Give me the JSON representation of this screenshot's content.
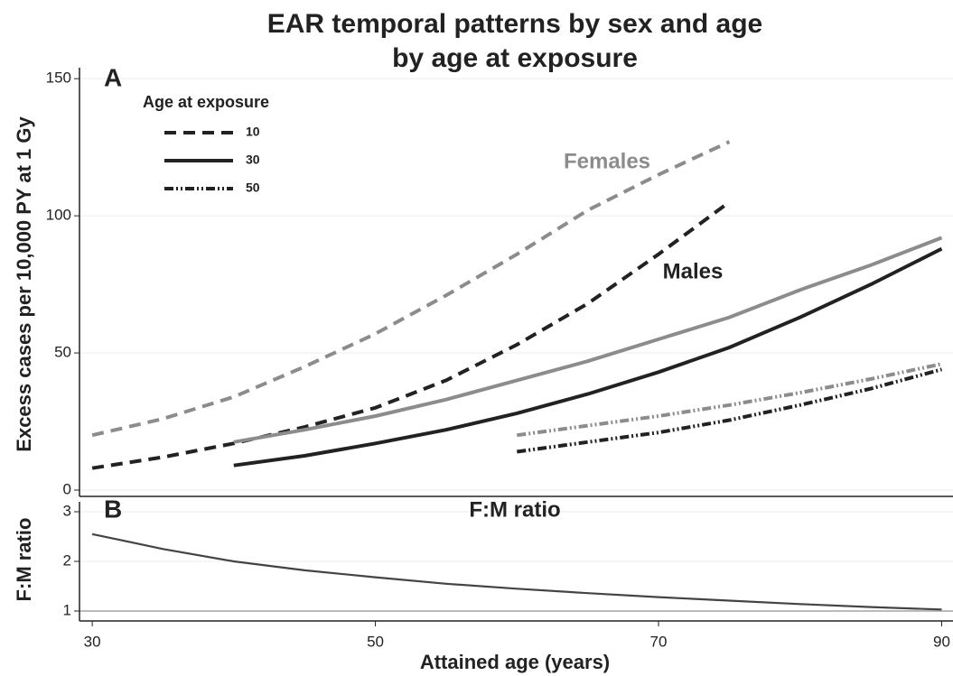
{
  "chart_data": [
    {
      "type": "line",
      "title": [
        "EAR temporal patterns by sex and age",
        "by age at exposure"
      ],
      "ylabel": "Excess cases per 10,000 PY at 1 Gy",
      "annotations": [
        "A",
        "Females",
        "Males"
      ],
      "xlim": [
        29.1,
        90.8
      ],
      "ylim": [
        -2.3,
        154
      ],
      "yticks": [
        0,
        50,
        100,
        150
      ],
      "grid": true,
      "legend": {
        "title": "Age at exposure",
        "color": "#222",
        "entries": [
          {
            "name": "10",
            "dash": "dashed"
          },
          {
            "name": "30",
            "dash": "solid"
          },
          {
            "name": "50",
            "dash": "dashdot"
          }
        ]
      },
      "series": [
        {
          "color": "#8c8c8c",
          "dash": "dashed",
          "x": [
            30,
            35,
            40,
            45,
            50,
            55,
            60,
            65,
            70,
            75
          ],
          "values": [
            20,
            26,
            34,
            45,
            57,
            71,
            86,
            102,
            115,
            127
          ]
        },
        {
          "color": "#222222",
          "dash": "dashed",
          "x": [
            30,
            35,
            40,
            45,
            50,
            55,
            60,
            65,
            70,
            75
          ],
          "values": [
            8,
            12,
            17,
            23,
            30,
            40,
            53,
            68,
            86,
            105
          ]
        },
        {
          "color": "#8c8c8c",
          "dash": "solid",
          "x": [
            40,
            45,
            50,
            55,
            60,
            65,
            70,
            75,
            80,
            85,
            90
          ],
          "values": [
            17.5,
            22,
            27,
            33,
            40,
            47,
            55,
            63,
            73,
            82,
            92
          ]
        },
        {
          "color": "#222222",
          "dash": "solid",
          "x": [
            40,
            45,
            50,
            55,
            60,
            65,
            70,
            75,
            80,
            85,
            90
          ],
          "values": [
            9,
            12.5,
            17,
            22,
            28,
            35,
            43,
            52,
            63,
            75,
            88
          ]
        },
        {
          "color": "#8c8c8c",
          "dash": "dashdot",
          "x": [
            60,
            65,
            70,
            75,
            80,
            85,
            90
          ],
          "values": [
            20,
            23.5,
            27,
            31,
            35.5,
            40.5,
            46
          ]
        },
        {
          "color": "#222222",
          "dash": "dashdot",
          "x": [
            60,
            65,
            70,
            75,
            80,
            85,
            90
          ],
          "values": [
            14,
            17.5,
            21,
            25.5,
            31,
            37,
            44
          ]
        }
      ]
    },
    {
      "type": "line",
      "ylabel": "F:M ratio",
      "xlabel": "Attained age (years)",
      "annotations": [
        "B",
        "F:M ratio"
      ],
      "xlim": [
        29.1,
        90.8
      ],
      "ylim": [
        0.8,
        3.2
      ],
      "xticks": [
        30,
        50,
        70,
        90
      ],
      "yticks": [
        1,
        2,
        3
      ],
      "grid": true,
      "series": [
        {
          "color": "#444444",
          "dash": "solid",
          "x": [
            30,
            35,
            40,
            45,
            50,
            55,
            60,
            65,
            70,
            75,
            80,
            85,
            90
          ],
          "values": [
            2.55,
            2.25,
            2.0,
            1.82,
            1.68,
            1.55,
            1.45,
            1.36,
            1.28,
            1.21,
            1.14,
            1.08,
            1.03
          ]
        }
      ]
    }
  ]
}
